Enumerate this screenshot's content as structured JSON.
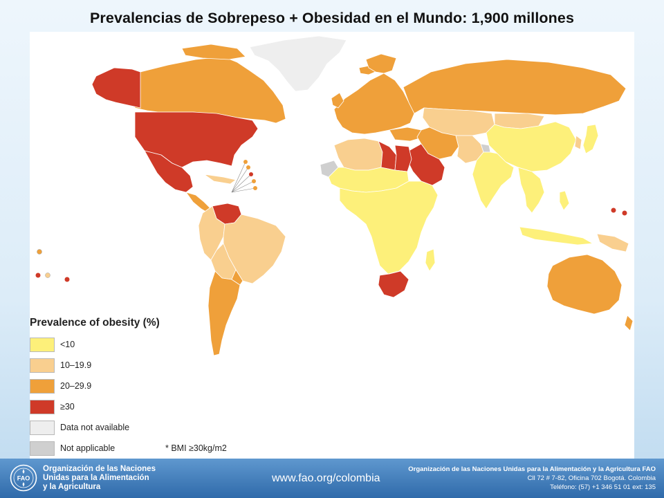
{
  "slide": {
    "title": "Prevalencias de Sobrepeso + Obesidad en el Mundo: 1,900 millones"
  },
  "map": {
    "legend": {
      "title": "Prevalence of obesity (%)",
      "items": [
        {
          "label": "<10",
          "color": "#fdf07a"
        },
        {
          "label": "10–19.9",
          "color": "#f9cf8f"
        },
        {
          "label": "20–29.9",
          "color": "#efa03a"
        },
        {
          "label": "≥30",
          "color": "#cf3a28"
        },
        {
          "label": "Data not available",
          "color": "#eeeeee"
        },
        {
          "label": "Not applicable",
          "color": "#cfcfcf"
        }
      ],
      "note": "* BMI ≥30kg/m2"
    },
    "regions": {
      "<10": [
        "Sub-Saharan Africa",
        "India",
        "China",
        "Southeast Asia"
      ],
      "10–19.9": [
        "Brazil",
        "Peru",
        "Bolivia",
        "Central Asia",
        "Western Sahara region"
      ],
      "20–29.9": [
        "Canada",
        "Russia",
        "Europe",
        "Australia",
        "Argentina",
        "Chile",
        "Iran",
        "Turkey"
      ],
      "≥30": [
        "Alaska",
        "United States",
        "Mexico",
        "Venezuela",
        "Libya",
        "Egypt",
        "Saudi Arabia",
        "South Africa"
      ],
      "Data not available": [
        "Greenland"
      ],
      "Not applicable": [
        "Kashmir"
      ]
    }
  },
  "footer": {
    "org_name_lines": [
      "Organización de las Naciones",
      "Unidas para la Alimentación",
      "y la Agricultura"
    ],
    "logo_text": "FAO",
    "url": "www.fao.org/colombia",
    "address_lines": [
      "Organización de las Naciones Unidas para la Alimentación y la Agricultura FAO",
      "Cll 72 # 7-82, Oficina 702 Bogotá. Colombia",
      "Teléfono: (57) +1 346 51 01 ext: 135"
    ]
  }
}
